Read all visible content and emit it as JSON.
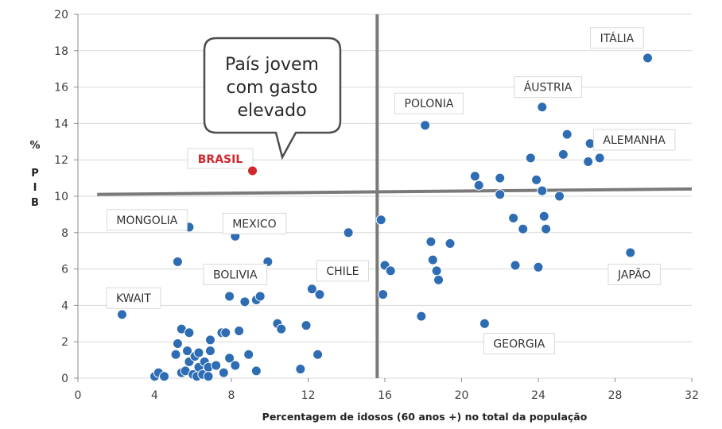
{
  "chart_data": {
    "type": "scatter",
    "xlabel": "Percentagem de idosos (60 anos +) no total da população",
    "ylabel": [
      "%",
      "P",
      "I",
      "B"
    ],
    "xlim": [
      0,
      32
    ],
    "ylim": [
      0,
      20
    ],
    "x_ticks": [
      0,
      4,
      8,
      12,
      16,
      20,
      24,
      28,
      32
    ],
    "y_ticks": [
      0,
      2,
      4,
      6,
      8,
      10,
      12,
      14,
      16,
      18,
      20
    ],
    "grid": "horizontal",
    "marker_color": "#2e6cb3",
    "highlight_color": "#d0282e",
    "reference_lines": {
      "vertical_x": 15.6,
      "horizontal": {
        "x_start": 1.0,
        "y_start": 10.1,
        "x_end": 32.0,
        "y_end": 10.4
      }
    },
    "points": [
      {
        "x": 2.3,
        "y": 3.5
      },
      {
        "x": 4.0,
        "y": 0.1
      },
      {
        "x": 4.2,
        "y": 0.3
      },
      {
        "x": 4.5,
        "y": 0.1
      },
      {
        "x": 5.2,
        "y": 6.4
      },
      {
        "x": 5.8,
        "y": 8.3
      },
      {
        "x": 5.1,
        "y": 1.3
      },
      {
        "x": 5.2,
        "y": 1.9
      },
      {
        "x": 5.4,
        "y": 2.7
      },
      {
        "x": 5.8,
        "y": 2.5
      },
      {
        "x": 5.7,
        "y": 1.5
      },
      {
        "x": 5.4,
        "y": 0.3
      },
      {
        "x": 5.6,
        "y": 0.4
      },
      {
        "x": 5.8,
        "y": 0.9
      },
      {
        "x": 6.0,
        "y": 0.2
      },
      {
        "x": 6.2,
        "y": 0.1
      },
      {
        "x": 6.1,
        "y": 1.2
      },
      {
        "x": 6.3,
        "y": 1.4
      },
      {
        "x": 6.3,
        "y": 0.6
      },
      {
        "x": 6.5,
        "y": 0.2
      },
      {
        "x": 6.6,
        "y": 0.9
      },
      {
        "x": 6.8,
        "y": 0.6
      },
      {
        "x": 6.8,
        "y": 0.1
      },
      {
        "x": 6.9,
        "y": 1.5
      },
      {
        "x": 6.9,
        "y": 2.1
      },
      {
        "x": 7.2,
        "y": 0.7
      },
      {
        "x": 7.5,
        "y": 2.5
      },
      {
        "x": 7.7,
        "y": 2.5
      },
      {
        "x": 7.6,
        "y": 0.3
      },
      {
        "x": 7.9,
        "y": 1.1
      },
      {
        "x": 7.9,
        "y": 4.5
      },
      {
        "x": 8.2,
        "y": 7.8
      },
      {
        "x": 8.2,
        "y": 0.7
      },
      {
        "x": 8.4,
        "y": 2.6
      },
      {
        "x": 8.7,
        "y": 4.2
      },
      {
        "x": 8.9,
        "y": 1.3
      },
      {
        "x": 9.3,
        "y": 4.3
      },
      {
        "x": 9.5,
        "y": 4.5
      },
      {
        "x": 9.3,
        "y": 0.4
      },
      {
        "x": 9.9,
        "y": 6.4
      },
      {
        "x": 10.4,
        "y": 3.0
      },
      {
        "x": 10.6,
        "y": 2.7
      },
      {
        "x": 11.6,
        "y": 0.5
      },
      {
        "x": 11.9,
        "y": 2.9
      },
      {
        "x": 12.2,
        "y": 4.9
      },
      {
        "x": 12.6,
        "y": 4.6
      },
      {
        "x": 12.5,
        "y": 1.3
      },
      {
        "x": 14.1,
        "y": 8.0
      },
      {
        "x": 15.8,
        "y": 8.7
      },
      {
        "x": 16.0,
        "y": 6.2
      },
      {
        "x": 16.3,
        "y": 5.9
      },
      {
        "x": 15.9,
        "y": 4.6
      },
      {
        "x": 18.1,
        "y": 13.9
      },
      {
        "x": 17.9,
        "y": 3.4
      },
      {
        "x": 18.4,
        "y": 7.5
      },
      {
        "x": 18.5,
        "y": 6.5
      },
      {
        "x": 18.7,
        "y": 5.9
      },
      {
        "x": 18.8,
        "y": 5.4
      },
      {
        "x": 19.4,
        "y": 7.4
      },
      {
        "x": 20.7,
        "y": 11.1
      },
      {
        "x": 20.9,
        "y": 10.6
      },
      {
        "x": 21.2,
        "y": 3.0
      },
      {
        "x": 22.0,
        "y": 11.0
      },
      {
        "x": 22.0,
        "y": 10.1
      },
      {
        "x": 22.7,
        "y": 8.8
      },
      {
        "x": 22.8,
        "y": 6.2
      },
      {
        "x": 23.2,
        "y": 8.2
      },
      {
        "x": 23.6,
        "y": 12.1
      },
      {
        "x": 23.9,
        "y": 10.9
      },
      {
        "x": 24.0,
        "y": 6.1
      },
      {
        "x": 24.2,
        "y": 14.9
      },
      {
        "x": 24.2,
        "y": 10.3
      },
      {
        "x": 24.3,
        "y": 8.9
      },
      {
        "x": 24.4,
        "y": 8.2
      },
      {
        "x": 25.1,
        "y": 10.0
      },
      {
        "x": 25.3,
        "y": 12.3
      },
      {
        "x": 25.5,
        "y": 13.4
      },
      {
        "x": 26.6,
        "y": 11.9
      },
      {
        "x": 26.7,
        "y": 12.9
      },
      {
        "x": 27.2,
        "y": 12.1
      },
      {
        "x": 28.8,
        "y": 6.9
      },
      {
        "x": 29.7,
        "y": 17.6
      }
    ],
    "highlight_point": {
      "x": 9.1,
      "y": 11.4,
      "label": "BRASIL"
    },
    "country_labels": [
      {
        "text": "ITÁLIA",
        "x": 28.1,
        "y": 18.7
      },
      {
        "text": "ÁUSTRIA",
        "x": 24.5,
        "y": 16.0
      },
      {
        "text": "POLONIA",
        "x": 18.3,
        "y": 15.1
      },
      {
        "text": "ALEMANHA",
        "x": 29.0,
        "y": 13.1
      },
      {
        "text": "MONGOLIA",
        "x": 3.6,
        "y": 8.7
      },
      {
        "text": "MEXICO",
        "x": 9.2,
        "y": 8.5
      },
      {
        "text": "CHILE",
        "x": 13.8,
        "y": 5.9
      },
      {
        "text": "BOLIVIA",
        "x": 8.2,
        "y": 5.7
      },
      {
        "text": "JAPÃO",
        "x": 29.0,
        "y": 5.7
      },
      {
        "text": "KWAIT",
        "x": 2.9,
        "y": 4.4
      },
      {
        "text": "GEORGIA",
        "x": 23.0,
        "y": 1.9
      }
    ],
    "annotation": {
      "lines": [
        "País jovem",
        "com gasto",
        "elevado"
      ],
      "x": 9.4,
      "y": 16.8
    }
  }
}
